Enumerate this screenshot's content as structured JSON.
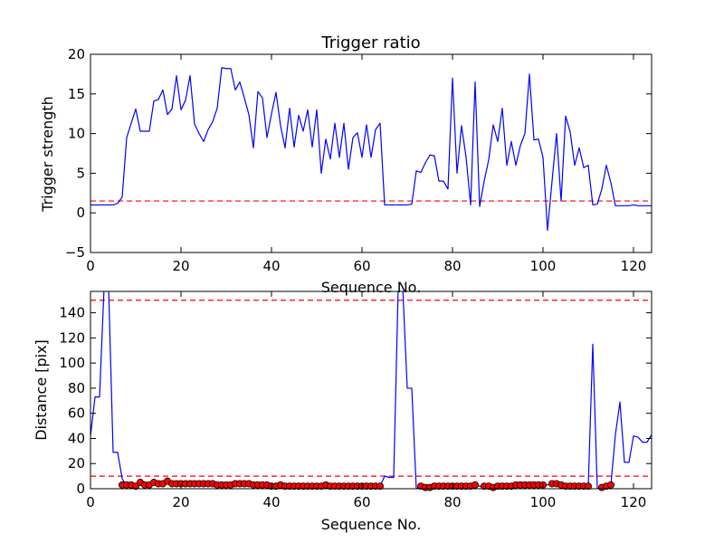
{
  "chart_data": [
    {
      "type": "line",
      "title": "Trigger ratio",
      "xlabel": "Sequence No.",
      "ylabel": "Trigger strength",
      "xlim": [
        0,
        124
      ],
      "ylim": [
        -5,
        20
      ],
      "xticks": [
        "0",
        "20",
        "40",
        "60",
        "80",
        "100",
        "120"
      ],
      "yticks": [
        "−5",
        "0",
        "5",
        "10",
        "15",
        "20"
      ],
      "grid": false,
      "series": [
        {
          "line_color": "#0000ff",
          "x": [
            0,
            1,
            2,
            3,
            4,
            5,
            6,
            7,
            8,
            9,
            10,
            11,
            12,
            13,
            14,
            15,
            16,
            17,
            18,
            19,
            20,
            21,
            22,
            23,
            24,
            25,
            26,
            27,
            28,
            29,
            30,
            31,
            32,
            33,
            34,
            35,
            36,
            37,
            38,
            39,
            40,
            41,
            42,
            43,
            44,
            45,
            46,
            47,
            48,
            49,
            50,
            51,
            52,
            53,
            54,
            55,
            56,
            57,
            58,
            59,
            60,
            61,
            62,
            63,
            64,
            65,
            66,
            67,
            68,
            69,
            70,
            71,
            72,
            73,
            74,
            75,
            76,
            77,
            78,
            79,
            80,
            81,
            82,
            83,
            84,
            85,
            86,
            87,
            88,
            89,
            90,
            91,
            92,
            93,
            94,
            95,
            96,
            97,
            98,
            99,
            100,
            101,
            102,
            103,
            104,
            105,
            106,
            107,
            108,
            109,
            110,
            111,
            112,
            113,
            114,
            115,
            116,
            117,
            118,
            119,
            120,
            121,
            122,
            123,
            124
          ],
          "y": [
            1,
            1,
            1,
            1,
            1,
            1,
            1.2,
            2,
            9.5,
            11.3,
            13.1,
            10.3,
            10.3,
            10.3,
            14.1,
            14.3,
            15.5,
            12.4,
            13.1,
            17.3,
            13,
            14.2,
            17.3,
            11.2,
            10,
            9,
            10.5,
            11.5,
            13.2,
            18.3,
            18.2,
            18.2,
            15.5,
            16.5,
            14.5,
            12.4,
            8.2,
            15.3,
            14.5,
            9.5,
            12.5,
            15.2,
            11,
            8.2,
            13.2,
            8.3,
            12.3,
            10.3,
            13,
            8.3,
            13,
            5,
            9.3,
            6.8,
            11.3,
            7,
            11.3,
            5.5,
            9.5,
            10.1,
            7,
            11.1,
            7,
            10.5,
            11.3,
            1,
            1,
            1,
            1,
            1,
            1,
            1.1,
            5.3,
            5.1,
            6.3,
            7.3,
            7.2,
            4,
            4,
            3,
            17,
            5,
            11,
            7,
            1,
            16.5,
            0.8,
            4,
            6.7,
            11.1,
            9,
            13.2,
            6,
            9,
            6,
            8.5,
            10,
            17.5,
            9.2,
            9.3,
            7,
            -2.2,
            4,
            10,
            1.5,
            12.2,
            10.2,
            6,
            8.2,
            5.7,
            6,
            1,
            1.1,
            3,
            6,
            3.8,
            0.9,
            0.9,
            0.9,
            0.9,
            1,
            0.9,
            0.9,
            0.9,
            0.9
          ]
        }
      ],
      "thresholds": [
        {
          "y": 1.5,
          "color": "#ff0000",
          "style": "dashed"
        }
      ]
    },
    {
      "type": "line",
      "xlabel": "Sequence No.",
      "ylabel": "Distance [pix]",
      "xlim": [
        0,
        124
      ],
      "ylim": [
        0,
        157
      ],
      "xticks": [
        "0",
        "20",
        "40",
        "60",
        "80",
        "100",
        "120"
      ],
      "yticks": [
        "0",
        "20",
        "40",
        "60",
        "80",
        "100",
        "120",
        "140"
      ],
      "grid": false,
      "series": [
        {
          "line_color": "#0000ff",
          "x": [
            0,
            1,
            2,
            3,
            4,
            5,
            6,
            7,
            8,
            9,
            10,
            11,
            12,
            13,
            14,
            15,
            16,
            17,
            18,
            19,
            20,
            21,
            22,
            23,
            24,
            25,
            26,
            27,
            28,
            29,
            30,
            31,
            32,
            33,
            34,
            35,
            36,
            37,
            38,
            39,
            40,
            41,
            42,
            43,
            44,
            45,
            46,
            47,
            48,
            49,
            50,
            51,
            52,
            53,
            54,
            55,
            56,
            57,
            58,
            59,
            60,
            61,
            62,
            63,
            64,
            65,
            66,
            67,
            68,
            69,
            70,
            71,
            72,
            73,
            74,
            75,
            76,
            77,
            78,
            79,
            80,
            81,
            82,
            83,
            84,
            85,
            86,
            87,
            88,
            89,
            90,
            91,
            92,
            93,
            94,
            95,
            96,
            97,
            98,
            99,
            100,
            101,
            102,
            103,
            104,
            105,
            106,
            107,
            108,
            109,
            110,
            111,
            112,
            113,
            114,
            115,
            116,
            117,
            118,
            119,
            120,
            121,
            122,
            123,
            124
          ],
          "y": [
            42,
            73,
            73,
            160,
            160,
            29,
            29,
            8,
            2,
            2,
            2,
            4,
            2,
            3,
            4,
            3,
            4,
            5,
            4,
            4,
            4,
            4,
            4,
            4,
            4,
            4,
            4,
            3,
            3,
            3,
            3,
            4,
            4,
            4,
            4,
            3,
            3,
            3,
            3,
            2,
            2,
            3,
            2,
            2,
            2,
            2,
            2,
            2,
            2,
            2,
            2,
            3,
            2,
            2,
            2,
            2,
            2,
            2,
            2,
            2,
            2,
            2,
            2,
            2,
            2,
            10,
            9,
            9,
            160,
            160,
            80,
            80,
            0,
            2,
            1,
            1,
            2,
            2,
            2,
            2,
            2,
            2,
            2,
            2,
            2,
            3,
            2,
            2,
            2,
            1,
            2,
            2,
            2,
            2,
            3,
            3,
            3,
            3,
            3,
            3,
            3,
            3,
            4,
            4,
            3,
            2,
            2,
            2,
            2,
            2,
            2,
            115,
            0,
            1,
            2,
            3,
            43,
            69,
            21,
            21,
            42,
            41,
            37,
            37,
            43
          ]
        }
      ],
      "markers": {
        "color": "#ff0000",
        "x": [
          7,
          8,
          9,
          10,
          11,
          12,
          13,
          14,
          15,
          16,
          17,
          18,
          19,
          20,
          21,
          22,
          23,
          24,
          25,
          26,
          27,
          28,
          29,
          30,
          31,
          32,
          33,
          34,
          35,
          36,
          37,
          38,
          39,
          40,
          41,
          42,
          43,
          44,
          45,
          46,
          47,
          48,
          49,
          50,
          51,
          52,
          53,
          54,
          55,
          56,
          57,
          58,
          59,
          60,
          61,
          62,
          63,
          64,
          73,
          74,
          75,
          76,
          77,
          78,
          79,
          80,
          81,
          82,
          83,
          84,
          85,
          87,
          88,
          89,
          90,
          91,
          92,
          93,
          94,
          95,
          96,
          97,
          98,
          99,
          100,
          102,
          103,
          104,
          105,
          106,
          107,
          108,
          109,
          110,
          113,
          114,
          115
        ],
        "y": [
          3,
          3,
          3,
          2,
          5,
          3,
          3,
          5,
          4,
          4,
          6,
          4,
          4,
          4,
          4,
          4,
          4,
          4,
          4,
          4,
          4,
          3,
          3,
          3,
          3,
          4,
          4,
          4,
          4,
          3,
          3,
          3,
          3,
          2,
          2,
          3,
          2,
          2,
          2,
          2,
          2,
          2,
          2,
          2,
          2,
          3,
          2,
          2,
          2,
          2,
          2,
          2,
          2,
          2,
          2,
          2,
          2,
          2,
          2,
          1,
          1,
          2,
          2,
          2,
          2,
          2,
          2,
          2,
          2,
          2,
          3,
          2,
          2,
          1,
          2,
          2,
          2,
          2,
          3,
          3,
          3,
          3,
          3,
          3,
          3,
          4,
          4,
          3,
          2,
          2,
          2,
          2,
          2,
          2,
          1,
          2,
          3
        ]
      },
      "thresholds": [
        {
          "y": 150,
          "color": "#ff0000",
          "style": "dashed"
        },
        {
          "y": 10,
          "color": "#ff0000",
          "style": "dashed"
        }
      ]
    }
  ]
}
